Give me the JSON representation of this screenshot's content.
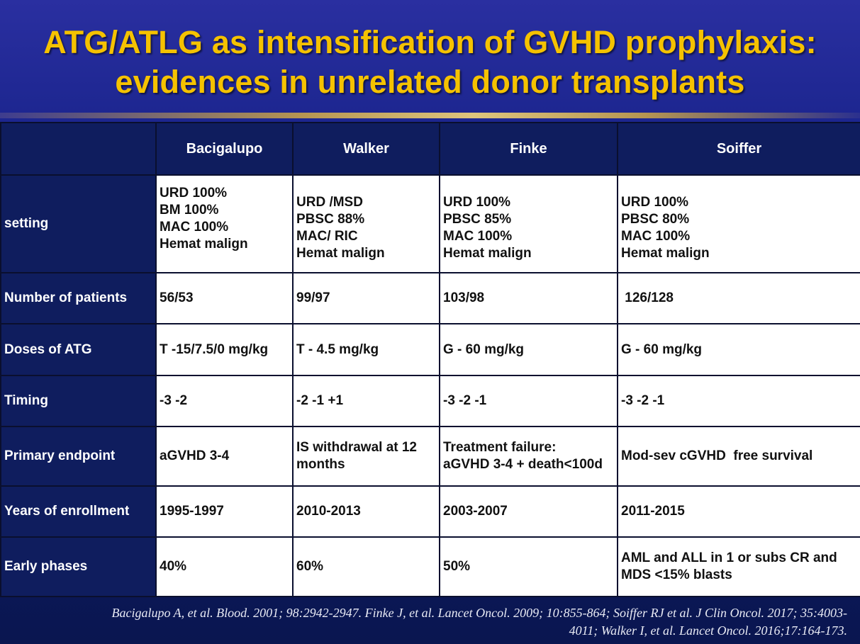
{
  "title": {
    "line1": "ATG/ATLG as intensification of GVHD prophylaxis:",
    "line2": "evidences in unrelated donor transplants"
  },
  "table": {
    "columns": [
      "",
      "Bacigalupo",
      "Walker",
      "Finke",
      "Soiffer"
    ],
    "rows": [
      {
        "label": "setting",
        "cells": [
          [
            "URD 100%",
            "BM 100%",
            "MAC 100%",
            "Hemat malign"
          ],
          [
            "URD /MSD",
            "PBSC 88%",
            "MAC/ RIC",
            "Hemat malign"
          ],
          [
            "URD 100%",
            "PBSC 85%",
            "MAC 100%",
            "Hemat malign"
          ],
          [
            "URD 100%",
            "PBSC 80%",
            "MAC 100%",
            "Hemat malign"
          ]
        ]
      },
      {
        "label": "Number of patients",
        "cells": [
          [
            "56/53"
          ],
          [
            "99/97"
          ],
          [
            "103/98"
          ],
          [
            " 126/128"
          ]
        ]
      },
      {
        "label": "Doses of ATG",
        "cells": [
          [
            "T -15/7.5/0 mg/kg"
          ],
          [
            "T - 4.5 mg/kg"
          ],
          [
            "G - 60 mg/kg"
          ],
          [
            "G - 60 mg/kg"
          ]
        ]
      },
      {
        "label": "Timing",
        "cells": [
          [
            "-3 -2"
          ],
          [
            "-2 -1 +1"
          ],
          [
            "-3 -2 -1"
          ],
          [
            "-3 -2 -1"
          ]
        ]
      },
      {
        "label": "Primary endpoint",
        "cells": [
          [
            "aGVHD 3-4"
          ],
          [
            "IS withdrawal at 12",
            "months"
          ],
          [
            "Treatment failure:",
            "aGVHD 3-4 + death<100d"
          ],
          [
            "Mod-sev cGVHD  free survival"
          ]
        ]
      },
      {
        "label": "Years of enrollment",
        "cells": [
          [
            "1995-1997"
          ],
          [
            "2010-2013"
          ],
          [
            "2003-2007"
          ],
          [
            "2011-2015"
          ]
        ]
      },
      {
        "label": "Early phases",
        "cells": [
          [
            "40%"
          ],
          [
            "60%"
          ],
          [
            "50%"
          ],
          [
            "AML and ALL in 1 or subs CR and",
            "MDS <15% blasts"
          ]
        ]
      }
    ]
  },
  "footer": {
    "line1": "Bacigalupo A, et al. Blood. 2001; 98:2942-2947.  Finke J, et al. Lancet Oncol. 2009; 10:855-864; Soiffer RJ et al. J Clin Oncol. 2017; 35:4003-",
    "line2": "4011; Walker I, et al.  Lancet Oncol. 2016;17:164-173."
  },
  "colors": {
    "title": "#f5c200",
    "header_bg": "#0f1d5e",
    "cell_bg": "#ffffff"
  }
}
